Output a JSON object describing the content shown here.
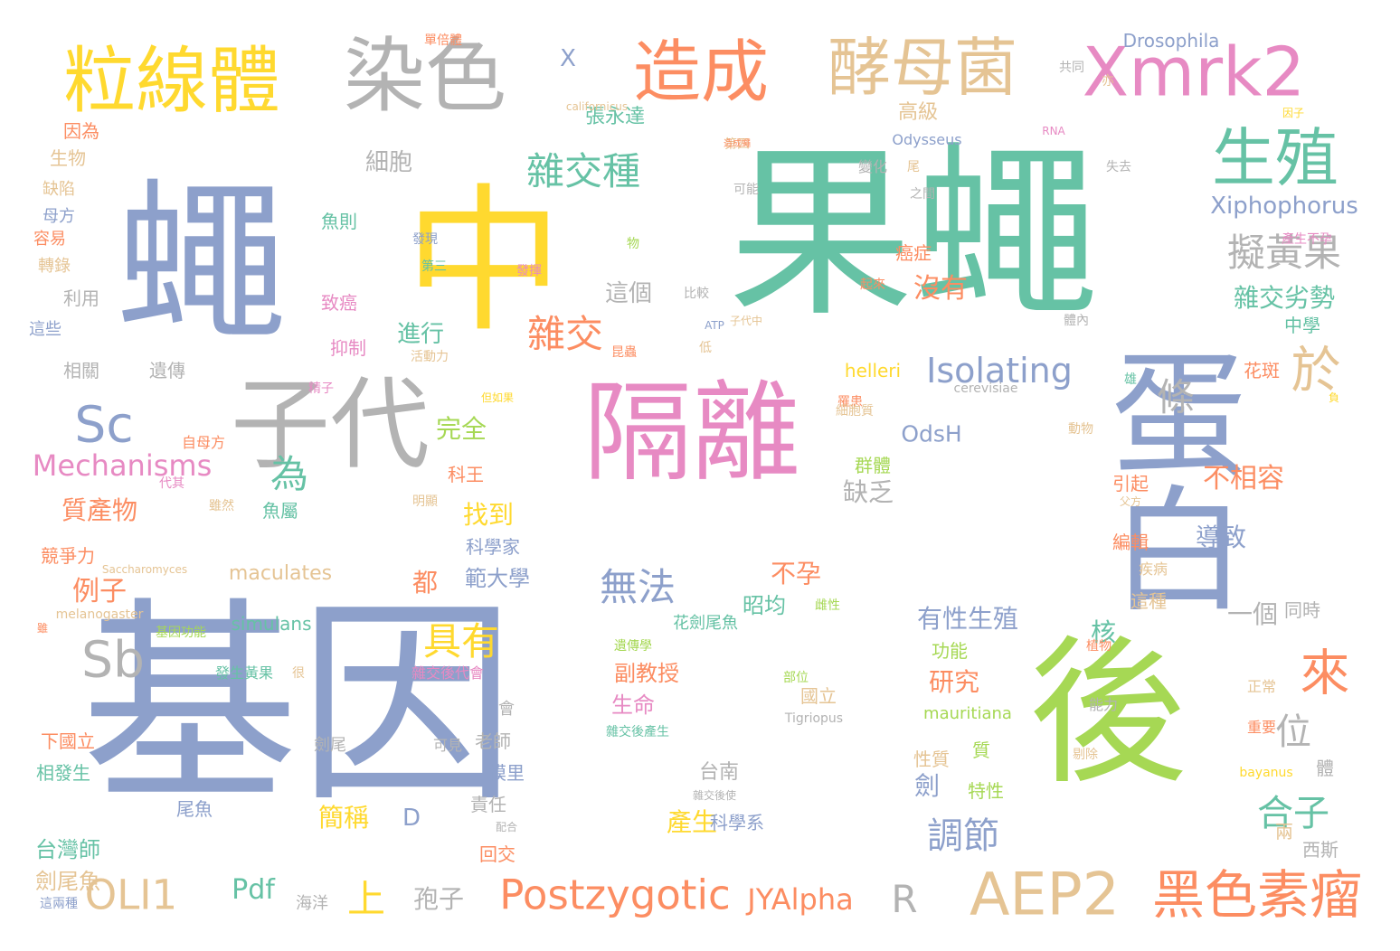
{
  "words": [
    "基因",
    "果蠅",
    "蠅",
    "中",
    "後",
    "蛋白",
    "隔離",
    "子代",
    "染色",
    "粒線體",
    "Xmrk2",
    "造成",
    "酵母菌",
    "生殖",
    "AEP2",
    "黑色素瘤",
    "於",
    "來",
    "Sb",
    "Sc",
    "OLI1",
    "Postzygotic",
    "雜交種",
    "擬黃果",
    "雜交",
    "Isolating",
    "具有",
    "為",
    "無法",
    "調節",
    "JYAlpha",
    "Mechanisms",
    "條",
    "位",
    "合子",
    "不相容",
    "雜交劣勢",
    "沒有",
    "Pdf",
    "上",
    "R",
    "Xiphophorus",
    "一個",
    "細胞",
    "這個",
    "進行",
    "完全",
    "找到",
    "質產物",
    "例子",
    "Drosophila",
    "OdsH",
    "有性生殖",
    "研究",
    "導致",
    "缺乏",
    "都",
    "產生",
    "範大學",
    "副教授",
    "生命",
    "簡稱",
    "孢子",
    "台灣師",
    "劍尾魚",
    "台南",
    "核",
    "劍",
    "不孕",
    "昭均",
    "maculates",
    "simulans",
    "helleri",
    "mauritiana",
    "Odysseus",
    "高級",
    "張永達",
    "X",
    "D",
    "癌症",
    "致癌",
    "抑制",
    "遺傳",
    "相關",
    "利用",
    "生物",
    "因為",
    "母方",
    "容易",
    "轉錄",
    "缺陷",
    "這些",
    "競爭力",
    "下國立",
    "相發生",
    "科學家",
    "老師",
    "模里",
    "責任",
    "尾魚",
    "回交",
    "海洋",
    "這兩種",
    "西斯",
    "兩",
    "編輯",
    "引起",
    "群體",
    "特性",
    "性質",
    "科學系",
    "國立",
    "功能",
    "同時",
    "這種",
    "體",
    "質",
    "花斑",
    "中學",
    "魚則",
    "魚屬",
    "科王",
    "自母方",
    "發生黃果",
    "雜交後代會",
    "花劍尾魚",
    "可見",
    "劍尾",
    "會",
    "明顯",
    "雖然",
    "能力",
    "正常",
    "重要",
    "剔除",
    "父方",
    "比較",
    "活動力",
    "發現",
    "第三",
    "發揮",
    "第四",
    "可能",
    "物",
    "變化",
    "之間",
    "尾",
    "失去",
    "起來",
    "體內",
    "雄",
    "亦",
    "共同",
    "RNA",
    "因子",
    "單倍體",
    "californicus",
    "Tigriopus",
    "bayanus",
    "cerevisiae",
    "Saccharomyces",
    "melanogaster",
    "ATP",
    "基因功能",
    "精子",
    "代其",
    "但如果",
    "罹患",
    "植物",
    "雜交後產生",
    "雜交後使",
    "配合",
    "很",
    "低",
    "部位",
    "雌性",
    "動物",
    "遺傳學",
    "疾病",
    "細胞質",
    "產生不孕",
    "造成蠅",
    "昆蟲",
    "雖",
    "子代中",
    "負"
  ],
  "colors": {
    "c0": "#8da0cb",
    "c1": "#66c2a5",
    "c2": "#fc8d62",
    "c3": "#e78ac3",
    "c4": "#a6d854",
    "c5": "#ffd92f",
    "c6": "#e5c494",
    "c7": "#b3b3b3"
  }
}
